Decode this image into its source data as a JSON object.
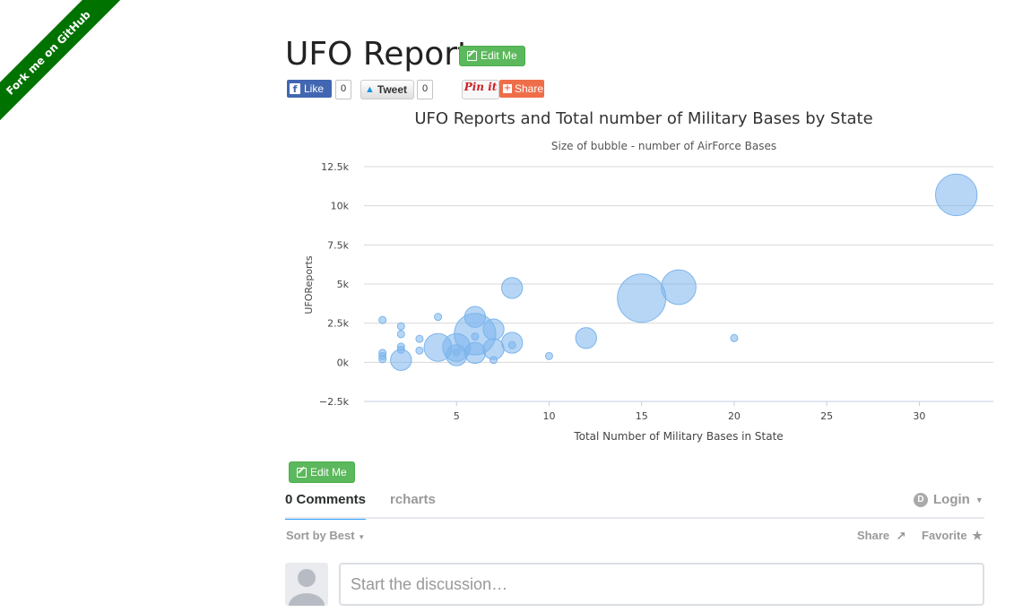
{
  "ribbon": {
    "label": "Fork me on GitHub",
    "color": "#007200"
  },
  "page": {
    "title": "UFO Reports",
    "edit_label": "Edit Me",
    "edit_label_bottom": "Edit Me"
  },
  "social": {
    "like_label": "Like",
    "like_count": "0",
    "tweet_label": "Tweet",
    "tweet_count": "0",
    "pin_label": "Pin it",
    "share_label": "Share"
  },
  "chart_data": {
    "type": "scatter",
    "title": "UFO Reports and Total number of Military Bases by State",
    "subtitle": "Size of bubble - number of AirForce Bases",
    "xlabel": "Total Number of Military Bases in State",
    "ylabel": "UFOReports",
    "xlim": [
      0,
      34
    ],
    "ylim": [
      -2500,
      12500
    ],
    "xticks": [
      5,
      10,
      15,
      20,
      25,
      30
    ],
    "yticks": [
      -2500,
      0,
      2500,
      5000,
      7500,
      10000,
      12500
    ],
    "xtick_labels": [
      "5",
      "10",
      "15",
      "20",
      "25",
      "30"
    ],
    "ytick_labels": [
      "−2.5k",
      "0k",
      "2.5k",
      "5k",
      "7.5k",
      "10k",
      "12.5k"
    ],
    "bubble_color": "#7cb5ec",
    "points": [
      {
        "x": 32,
        "y": 10700,
        "z": 5
      },
      {
        "x": 17,
        "y": 4800,
        "z": 4
      },
      {
        "x": 15,
        "y": 4100,
        "z": 6
      },
      {
        "x": 8,
        "y": 4750,
        "z": 2
      },
      {
        "x": 12,
        "y": 1550,
        "z": 2
      },
      {
        "x": 20,
        "y": 1550,
        "z": 0
      },
      {
        "x": 10,
        "y": 400,
        "z": 0
      },
      {
        "x": 6,
        "y": 2900,
        "z": 2
      },
      {
        "x": 6,
        "y": 1800,
        "z": 5
      },
      {
        "x": 7,
        "y": 2100,
        "z": 2
      },
      {
        "x": 8,
        "y": 1250,
        "z": 2
      },
      {
        "x": 8,
        "y": 1100,
        "z": 0
      },
      {
        "x": 7,
        "y": 850,
        "z": 2
      },
      {
        "x": 7,
        "y": 150,
        "z": 0
      },
      {
        "x": 6,
        "y": 600,
        "z": 2
      },
      {
        "x": 6,
        "y": 1650,
        "z": 0
      },
      {
        "x": 5,
        "y": 950,
        "z": 3
      },
      {
        "x": 5,
        "y": 450,
        "z": 2
      },
      {
        "x": 5,
        "y": 650,
        "z": 0
      },
      {
        "x": 4,
        "y": 950,
        "z": 3
      },
      {
        "x": 4,
        "y": 2900,
        "z": 0
      },
      {
        "x": 3,
        "y": 1500,
        "z": 0
      },
      {
        "x": 3,
        "y": 750,
        "z": 0
      },
      {
        "x": 2,
        "y": 2300,
        "z": 0
      },
      {
        "x": 2,
        "y": 1800,
        "z": 0
      },
      {
        "x": 2,
        "y": 1000,
        "z": 0
      },
      {
        "x": 2,
        "y": 800,
        "z": 0
      },
      {
        "x": 2,
        "y": 150,
        "z": 2
      },
      {
        "x": 1,
        "y": 2700,
        "z": 0
      },
      {
        "x": 1,
        "y": 600,
        "z": 0
      },
      {
        "x": 1,
        "y": 400,
        "z": 0
      },
      {
        "x": 1,
        "y": 200,
        "z": 0
      }
    ]
  },
  "comments": {
    "count_tab": "0 Comments",
    "site_tab": "rcharts",
    "login_label": "Login",
    "sort_label": "Sort by Best",
    "share_label": "Share",
    "favorite_label": "Favorite",
    "placeholder": "Start the discussion…",
    "accent": "#2e9fff"
  }
}
